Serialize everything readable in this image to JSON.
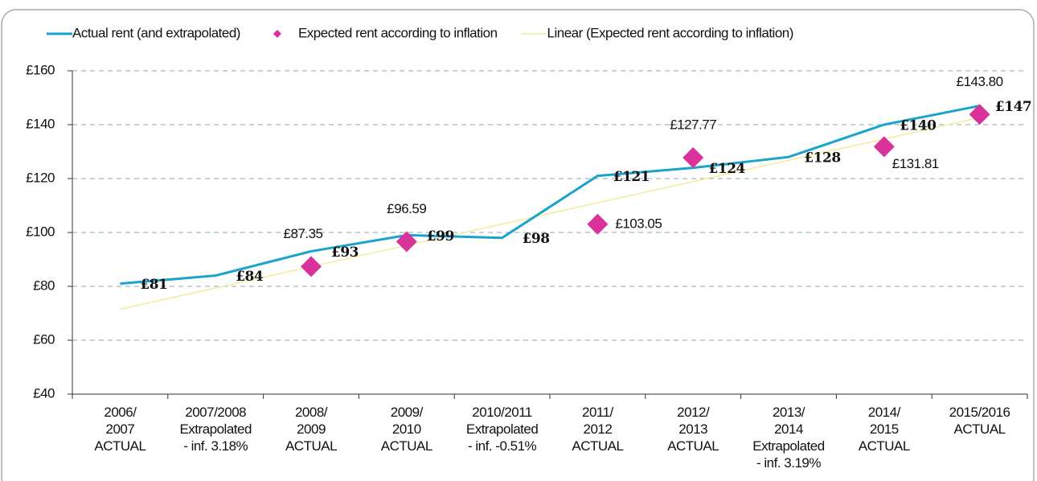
{
  "chart_data": {
    "type": "line",
    "categories": [
      [
        "2006/",
        "2007",
        "ACTUAL"
      ],
      [
        "2007/2008",
        "Extrapolated",
        "- inf. 3.18%"
      ],
      [
        "2008/",
        "2009",
        "ACTUAL"
      ],
      [
        "2009/",
        "2010",
        "ACTUAL"
      ],
      [
        "2010/2011",
        "Extrapolated",
        "- inf. -0.51%"
      ],
      [
        "2011/",
        "2012",
        "ACTUAL"
      ],
      [
        "2012/",
        "2013",
        "ACTUAL"
      ],
      [
        "2013/",
        "2014",
        "Extrapolated",
        "- inf. 3.19%"
      ],
      [
        "2014/",
        "2015",
        "ACTUAL"
      ],
      [
        "2015/2016",
        "ACTUAL"
      ]
    ],
    "series": [
      {
        "name": "Actual rent (and extrapolated)",
        "type": "line",
        "color": "#1aa3cc",
        "values": [
          81,
          84,
          93,
          99,
          98,
          121,
          124,
          128,
          140,
          147
        ],
        "value_labels": [
          "£81",
          "£84",
          "£93",
          "£99",
          "£98",
          "£121",
          "£124",
          "£128",
          "£140",
          "£147"
        ]
      },
      {
        "name": "Expected rent according to inflation",
        "type": "scatter",
        "color": "#d9329a",
        "values": [
          null,
          null,
          87.35,
          96.59,
          null,
          103.05,
          127.77,
          null,
          131.81,
          143.8
        ],
        "value_labels": [
          null,
          null,
          "£87.35",
          "£96.59",
          null,
          "£103.05",
          "£127.77",
          null,
          "£131.81",
          "£143.80"
        ]
      },
      {
        "name": "Linear (Expected rent according to inflation)",
        "type": "line",
        "color": "#f2ec9a",
        "values": [
          71.5,
          79.4,
          87.3,
          95.2,
          103.1,
          111,
          118.9,
          126.8,
          134.7,
          142.6
        ]
      }
    ],
    "ylim": [
      40,
      160
    ],
    "yticks": [
      {
        "value": 40,
        "label": "£40"
      },
      {
        "value": 60,
        "label": "£60"
      },
      {
        "value": 80,
        "label": "£80"
      },
      {
        "value": 100,
        "label": "£100"
      },
      {
        "value": 120,
        "label": "£120"
      },
      {
        "value": 140,
        "label": "£140"
      },
      {
        "value": 160,
        "label": "£160"
      }
    ],
    "grid": true,
    "legend": "top"
  }
}
